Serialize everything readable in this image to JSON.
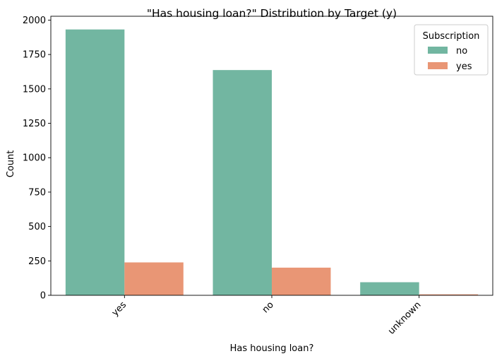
{
  "chart_data": {
    "type": "bar",
    "title": "\"Has housing loan?\" Distribution by Target (y)",
    "xlabel": "Has housing loan?",
    "ylabel": "Count",
    "categories": [
      "yes",
      "no",
      "unknown"
    ],
    "series": [
      {
        "name": "no",
        "color": "#72b6a1",
        "values": [
          1932,
          1637,
          95
        ]
      },
      {
        "name": "yes",
        "color": "#e99675",
        "values": [
          239,
          201,
          7
        ]
      }
    ],
    "ylim": [
      0,
      2028
    ],
    "yticks": [
      0,
      250,
      500,
      750,
      1000,
      1250,
      1500,
      1750,
      2000
    ],
    "legend": {
      "title": "Subscription",
      "position": "top-right"
    },
    "grid": false
  }
}
